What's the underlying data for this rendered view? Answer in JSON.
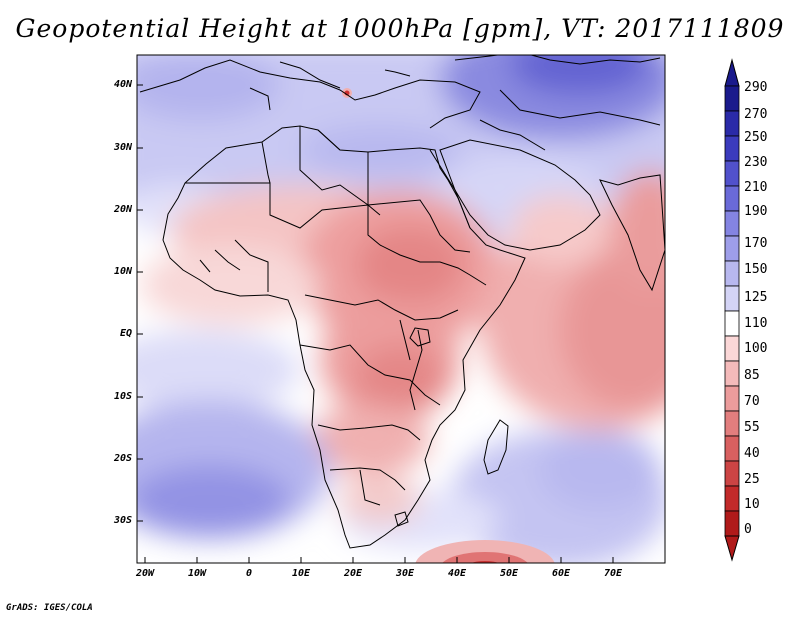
{
  "title": "Geopotential Height at 1000hPa [gpm], VT: 2017111809",
  "credit": "GrADS: IGES/COLA",
  "map": {
    "lat_ticks": [
      "40N",
      "30N",
      "20N",
      "10N",
      "EQ",
      "10S",
      "20S",
      "30S"
    ],
    "lon_ticks": [
      "20W",
      "10W",
      "0",
      "10E",
      "20E",
      "30E",
      "40E",
      "50E",
      "60E",
      "70E"
    ]
  },
  "colorbar": {
    "labels": [
      "290",
      "270",
      "250",
      "230",
      "210",
      "190",
      "170",
      "150",
      "125",
      "110",
      "100",
      "85",
      "70",
      "55",
      "40",
      "25",
      "10",
      "0"
    ],
    "colors": [
      "#1a1a8c",
      "#2a2aa8",
      "#3b3bbd",
      "#5151cc",
      "#6a6ad8",
      "#8484e2",
      "#9e9ee9",
      "#b8b8ef",
      "#d4d4f6",
      "#ffffff",
      "#fbd7d7",
      "#f4baba",
      "#ec9c9c",
      "#e27e7e",
      "#d86060",
      "#cc4444",
      "#c22a2a",
      "#b01a1a"
    ]
  }
}
